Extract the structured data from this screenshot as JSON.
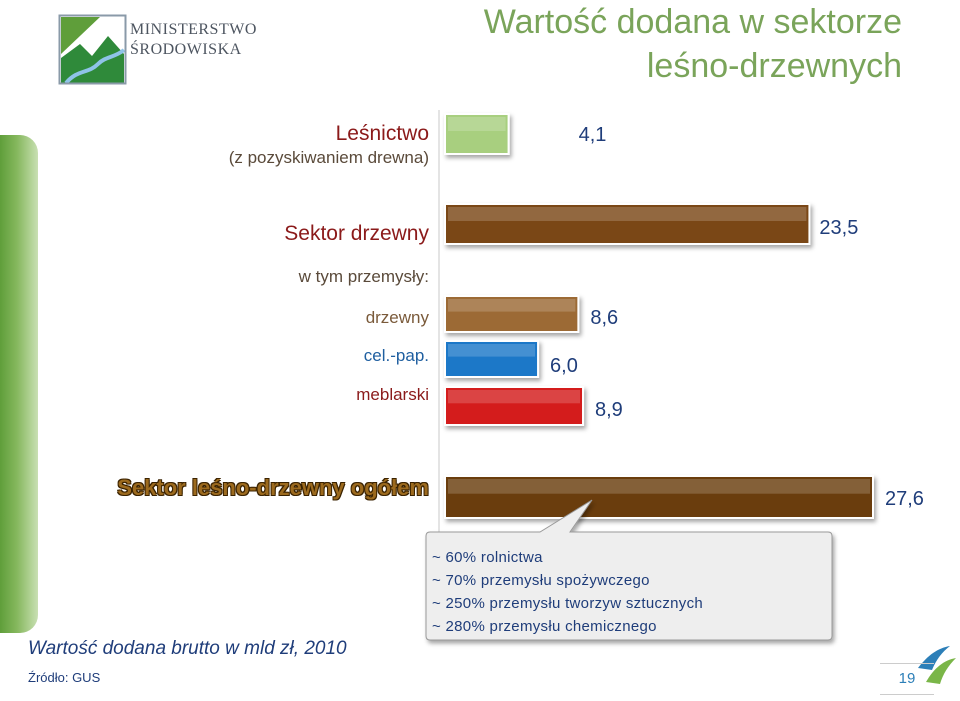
{
  "header": {
    "title_line1": "Wartość dodana w sektorze",
    "title_line2": "leśno-drzewnych"
  },
  "logo": {
    "line1": "MINISTERSTWO",
    "line2": "ŚRODOWISKA"
  },
  "colors": {
    "forestry": "#a8cf7f",
    "wood": "#7a4614",
    "pulp_paper": "#1f78c8",
    "furniture": "#d41f1f",
    "label_text": "#1f3d7a",
    "accent": "#7aa45a"
  },
  "chart_data": {
    "type": "bar",
    "orientation": "horizontal",
    "title": "Wartość dodana w sektorze leśno-drzewnych",
    "xlim": [
      0,
      27.6
    ],
    "grid": false,
    "legend": "none",
    "categories": [
      {
        "label": "Leśnictwo",
        "sublabel": "(z pozyskiwaniem drewna)",
        "value": 4.1,
        "value_label": "4,1",
        "color": "#a8cf7f"
      },
      {
        "label": "Sektor drzewny",
        "value": 23.5,
        "value_label": "23,5",
        "color": "#7a4614"
      },
      {
        "label": "drzewny",
        "value": 8.6,
        "value_label": "8,6",
        "color": "#9c6a36"
      },
      {
        "label": "cel.-pap.",
        "value": 6.0,
        "value_label": "6,0",
        "color": "#1f78c8"
      },
      {
        "label": "meblarski",
        "value": 8.9,
        "value_label": "8,9",
        "color": "#d41f1f"
      },
      {
        "label": "Sektor leśno-drzewny ogółem",
        "value": 27.6,
        "value_label": "27,6",
        "color": "#6a3c10"
      }
    ],
    "group_label": "w tym przemysły:"
  },
  "note": {
    "lines": [
      "~ 60% rolnictwa",
      "~ 70% przemysłu spożywczego",
      "~ 250% przemysłu tworzyw sztucznych",
      "~ 280% przemysłu chemicznego"
    ]
  },
  "footer": {
    "caption": "Wartość dodana brutto w mld zł, 2010",
    "source": "Źródło:  GUS",
    "page": "19"
  }
}
